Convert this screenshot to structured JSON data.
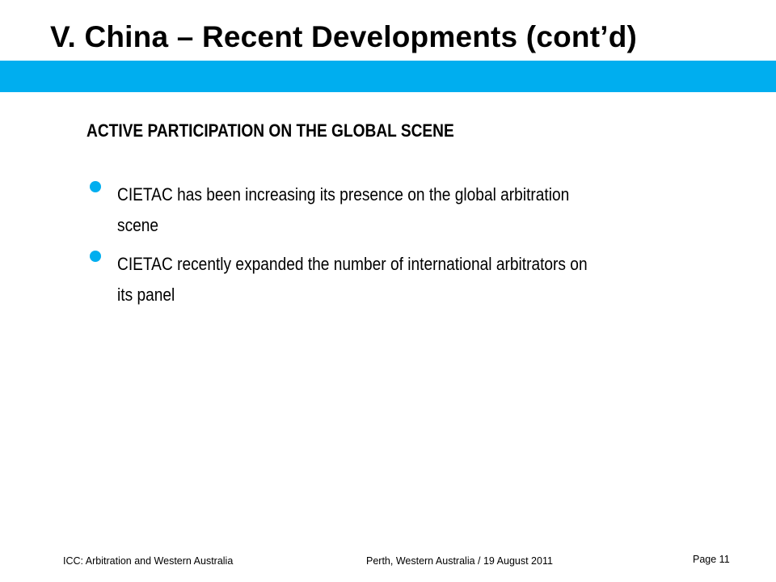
{
  "slide": {
    "title": "V.  China – Recent Developments  (cont’d)",
    "accent_color": "#00aeef",
    "section_heading": "ACTIVE PARTICIPATION ON THE GLOBAL SCENE",
    "bullets": [
      "CIETAC has been increasing its presence on the global arbitration scene",
      "CIETAC recently expanded the number of international arbitrators on its panel"
    ]
  },
  "footer": {
    "left": "ICC: Arbitration and Western Australia",
    "center": "Perth, Western Australia / 19 August 2011",
    "page": "Page 11"
  }
}
